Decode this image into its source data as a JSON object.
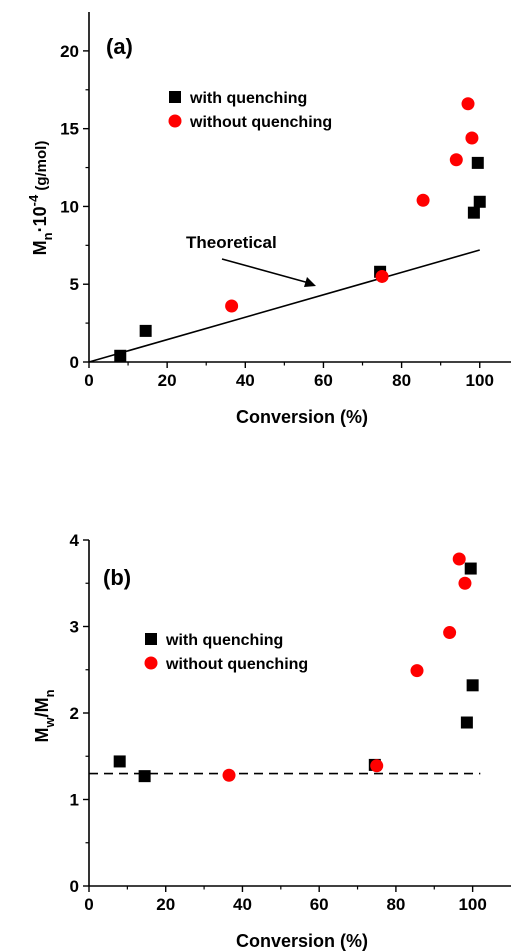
{
  "chart_data": [
    {
      "type": "scatter",
      "panel_label": "(a)",
      "xlabel": "Conversion (%)",
      "ylabel": {
        "main": "M",
        "sub": "n",
        "mid": "·10",
        "sup": "-4",
        "end": " (g/mol)"
      },
      "xlim": [
        0,
        108
      ],
      "ylim": [
        0,
        22.5
      ],
      "xticks": [
        0,
        20,
        40,
        60,
        80,
        100
      ],
      "yticks": [
        0,
        5,
        10,
        15,
        20
      ],
      "series": [
        {
          "name": "with quenching",
          "marker": "square",
          "color": "#000000",
          "x": [
            8,
            14.5,
            74.5,
            98.5,
            99.5,
            100
          ],
          "y": [
            0.4,
            2.0,
            5.8,
            9.6,
            12.8,
            10.3
          ]
        },
        {
          "name": "without quenching",
          "marker": "circle",
          "color": "#ff0000",
          "x": [
            36.5,
            75,
            85.5,
            94,
            97,
            98
          ],
          "y": [
            3.6,
            5.5,
            10.4,
            13.0,
            16.6,
            14.4
          ]
        }
      ],
      "theory_line": {
        "x": [
          0,
          100
        ],
        "y": [
          0,
          7.2
        ]
      },
      "annotation": "Theoretical",
      "legend_position": "upper center"
    },
    {
      "type": "scatter",
      "panel_label": "(b)",
      "xlabel": "Conversion (%)",
      "ylabel": {
        "a": "M",
        "a_sub": "w",
        "slash": "/M",
        "b_sub": "n"
      },
      "xlim": [
        0,
        110
      ],
      "ylim": [
        0,
        4
      ],
      "xticks": [
        0,
        20,
        40,
        60,
        80,
        100
      ],
      "yticks": [
        0,
        1,
        2,
        3,
        4
      ],
      "series": [
        {
          "name": "with quenching",
          "marker": "square",
          "color": "#000000",
          "x": [
            8,
            14.5,
            74.5,
            98.5,
            99.5,
            100
          ],
          "y": [
            1.44,
            1.27,
            1.4,
            1.89,
            3.67,
            2.32
          ]
        },
        {
          "name": "without quenching",
          "marker": "circle",
          "color": "#ff0000",
          "x": [
            36.5,
            75,
            85.5,
            94,
            96.5,
            98
          ],
          "y": [
            1.28,
            1.39,
            2.49,
            2.93,
            3.78,
            3.5
          ]
        }
      ],
      "reference_line": {
        "y": 1.3,
        "x": [
          0,
          102
        ],
        "style": "dashed"
      },
      "legend_position": "upper center"
    }
  ]
}
